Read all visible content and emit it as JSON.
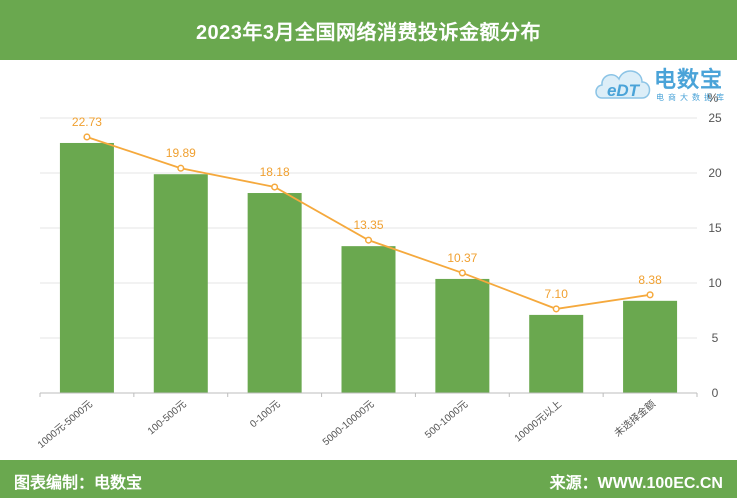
{
  "header": {
    "title": "2023年3月全国网络消费投诉金额分布"
  },
  "footer": {
    "left": "图表编制：电数宝",
    "right": "来源：WWW.100EC.CN"
  },
  "logo": {
    "mark": "eDT",
    "brand": "电数宝",
    "sub": "电商大数据库"
  },
  "colors": {
    "bar": "#6aa84f",
    "line": "#f5a93d",
    "label": "#f0a030",
    "header": "#6aa84f"
  },
  "chart_data": {
    "type": "bar",
    "categories": [
      "1000元-5000元",
      "100-500元",
      "0-100元",
      "5000-10000元",
      "500-1000元",
      "10000元以上",
      "未选择金额"
    ],
    "series": [
      {
        "values": [
          22.73,
          19.89,
          18.18,
          13.35,
          10.37,
          7.1,
          8.38
        ]
      }
    ],
    "data_labels": [
      "22.73",
      "19.89",
      "18.18",
      "13.35",
      "10.37",
      "7.10",
      "8.38"
    ],
    "overlay_line": true,
    "yunit": "%",
    "ylim": [
      0,
      25
    ],
    "yticks": [
      0,
      5,
      10,
      15,
      20,
      25
    ],
    "yaxis_position": "right",
    "grid": true,
    "title": "2023年3月全国网络消费投诉金额分布"
  }
}
